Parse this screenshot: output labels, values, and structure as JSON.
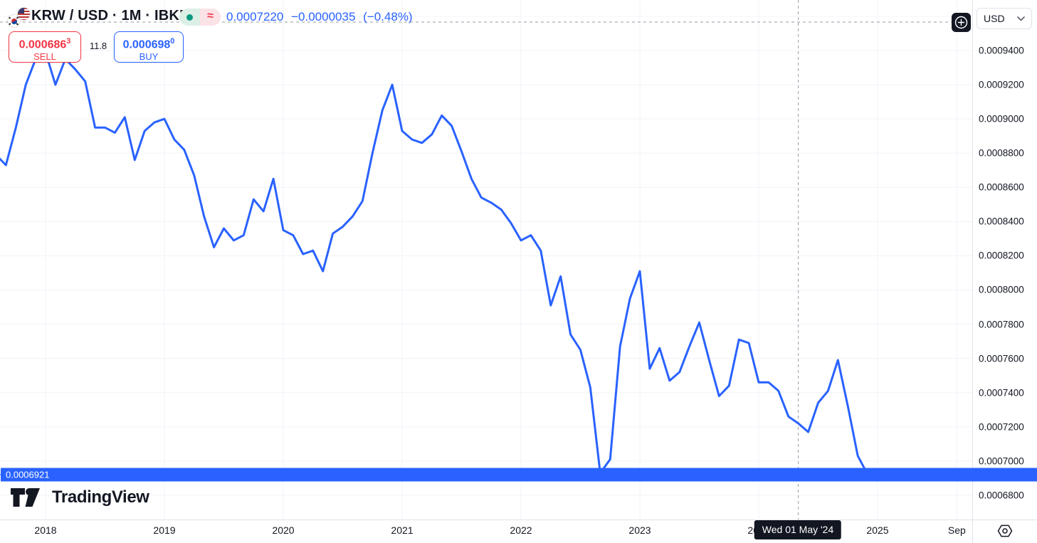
{
  "header": {
    "symbol_title": "KRW / USD · 1M · IBKR",
    "base_flag": "south-korea",
    "quote_flag": "united-states",
    "market_status": "open",
    "data_mode": "delayed",
    "last_price": "0.0007220",
    "change": "−0.0000035",
    "change_pct": "(−0.48%)",
    "accent_blue": "#2962ff"
  },
  "order_panel": {
    "sell_price_main": "0.000686",
    "sell_price_sup": "3",
    "sell_label": "SELL",
    "spread": "11.8",
    "buy_price_main": "0.000698",
    "buy_price_sup": "0",
    "buy_label": "BUY",
    "sell_color": "#f23645",
    "buy_color": "#2962ff"
  },
  "price_scale": {
    "currency": "USD"
  },
  "brand": {
    "name": "TradingView"
  },
  "chart_data": {
    "type": "line",
    "symbol": "KRW/USD",
    "timeframe": "1M",
    "exchange": "IBKR",
    "line_color": "#2962ff",
    "grid": true,
    "months": [
      "2017-08",
      "2017-09",
      "2017-10",
      "2017-11",
      "2017-12",
      "2018-01",
      "2018-02",
      "2018-03",
      "2018-04",
      "2018-05",
      "2018-06",
      "2018-07",
      "2018-08",
      "2018-09",
      "2018-10",
      "2018-11",
      "2018-12",
      "2019-01",
      "2019-02",
      "2019-03",
      "2019-04",
      "2019-05",
      "2019-06",
      "2019-07",
      "2019-08",
      "2019-09",
      "2019-10",
      "2019-11",
      "2019-12",
      "2020-01",
      "2020-02",
      "2020-03",
      "2020-04",
      "2020-05",
      "2020-06",
      "2020-07",
      "2020-08",
      "2020-09",
      "2020-10",
      "2020-11",
      "2020-12",
      "2021-01",
      "2021-02",
      "2021-03",
      "2021-04",
      "2021-05",
      "2021-06",
      "2021-07",
      "2021-08",
      "2021-09",
      "2021-10",
      "2021-11",
      "2021-12",
      "2022-01",
      "2022-02",
      "2022-03",
      "2022-04",
      "2022-05",
      "2022-06",
      "2022-07",
      "2022-08",
      "2022-09",
      "2022-10",
      "2022-11",
      "2022-12",
      "2023-01",
      "2023-02",
      "2023-03",
      "2023-04",
      "2023-05",
      "2023-06",
      "2023-07",
      "2023-08",
      "2023-09",
      "2023-10",
      "2023-11",
      "2023-12",
      "2024-01",
      "2024-02",
      "2024-03",
      "2024-04",
      "2024-05",
      "2024-06",
      "2024-07",
      "2024-08",
      "2024-09",
      "2024-10",
      "2024-11",
      "2024-12"
    ],
    "values": [
      0.000879,
      0.000873,
      0.000895,
      0.00092,
      0.000935,
      0.000939,
      0.00092,
      0.000935,
      0.000929,
      0.000922,
      0.000895,
      0.000895,
      0.000892,
      0.000901,
      0.000876,
      0.000893,
      0.000898,
      0.0009,
      0.000888,
      0.000882,
      0.000867,
      0.000843,
      0.000825,
      0.000836,
      0.000829,
      0.000832,
      0.000853,
      0.000846,
      0.000865,
      0.000835,
      0.000832,
      0.000821,
      0.000823,
      0.000811,
      0.000833,
      0.000837,
      0.000843,
      0.000852,
      0.00088,
      0.000905,
      0.00092,
      0.000893,
      0.000888,
      0.000886,
      0.000891,
      0.000902,
      0.000896,
      0.000881,
      0.000865,
      0.000854,
      0.000851,
      0.000847,
      0.000839,
      0.000829,
      0.000832,
      0.000823,
      0.000791,
      0.000808,
      0.000774,
      0.000765,
      0.000743,
      0.000693,
      0.000701,
      0.000767,
      0.000795,
      0.000811,
      0.000754,
      0.000766,
      0.000747,
      0.000752,
      0.000767,
      0.000781,
      0.000759,
      0.000738,
      0.000744,
      0.000771,
      0.000769,
      0.000746,
      0.000746,
      0.000741,
      0.000726,
      0.000722,
      0.000717,
      0.000734,
      0.000741,
      0.000759,
      0.000732,
      0.000703,
      0.0006921
    ],
    "last_price": 0.0006921,
    "last_price_label": "0.0006921",
    "crosshair": {
      "month": "2024-05",
      "date_label": "Wed 01 May '24",
      "price_at_crosshair": 0.000722
    },
    "y_axis": {
      "tick_labels": [
        "0.0009400",
        "0.0009200",
        "0.0009000",
        "0.0008800",
        "0.0008600",
        "0.0008400",
        "0.0008200",
        "0.0008000",
        "0.0007800",
        "0.0007600",
        "0.0007400",
        "0.0007200",
        "0.0007000",
        "0.0006800"
      ],
      "top_value": 0.00094,
      "bottom_value": 0.00068,
      "tick_step": 2e-05
    },
    "x_axis": {
      "ticks": [
        {
          "label": "2018",
          "t": 2018
        },
        {
          "label": "2019",
          "t": 2019
        },
        {
          "label": "2020",
          "t": 2020
        },
        {
          "label": "2021",
          "t": 2021
        },
        {
          "label": "2022",
          "t": 2022
        },
        {
          "label": "2023",
          "t": 2023
        },
        {
          "label": "2024",
          "t": 2024
        },
        {
          "label": "2025",
          "t": 2025
        },
        {
          "label": "Sep",
          "t": 2025.6667
        }
      ]
    }
  }
}
